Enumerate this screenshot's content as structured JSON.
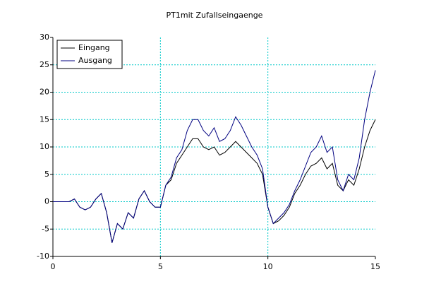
{
  "chart_data": {
    "type": "line",
    "title": "PT1mit Zufallseingaenge",
    "x": [
      0,
      0.25,
      0.5,
      0.75,
      1,
      1.25,
      1.5,
      1.75,
      2,
      2.25,
      2.5,
      2.75,
      3,
      3.25,
      3.5,
      3.75,
      4,
      4.25,
      4.5,
      4.75,
      5,
      5.25,
      5.5,
      5.75,
      6,
      6.25,
      6.5,
      6.75,
      7,
      7.25,
      7.5,
      7.75,
      8,
      8.25,
      8.5,
      8.75,
      9,
      9.25,
      9.5,
      9.75,
      10,
      10.25,
      10.5,
      10.75,
      11,
      11.25,
      11.5,
      11.75,
      12,
      12.25,
      12.5,
      12.75,
      13,
      13.25,
      13.5,
      13.75,
      14,
      14.25,
      14.5,
      14.75,
      15
    ],
    "series": [
      {
        "name": "Eingang",
        "color": "#000000",
        "values": [
          0,
          0,
          0,
          0,
          0.5,
          -1,
          -1.5,
          -1,
          0.5,
          1.5,
          -2,
          -7.5,
          -4,
          -5,
          -2,
          -3,
          0.5,
          2,
          0,
          -1,
          -1,
          3,
          4,
          7,
          8.5,
          10,
          11.5,
          11.5,
          10,
          9.5,
          10,
          8.5,
          9,
          10,
          11,
          10,
          9,
          8,
          7,
          5,
          -1,
          -4,
          -3.5,
          -2.5,
          -1,
          1.5,
          3,
          5,
          6.5,
          7,
          8,
          6,
          7,
          3,
          2,
          4,
          3,
          6,
          10,
          13,
          15
        ]
      },
      {
        "name": "Ausgang",
        "color": "#000080",
        "values": [
          0,
          0,
          0,
          0,
          0.5,
          -1,
          -1.5,
          -1,
          0.5,
          1.5,
          -2,
          -7.5,
          -4,
          -5,
          -2,
          -3,
          0.5,
          2,
          0,
          -1,
          -1,
          3,
          4.5,
          8,
          9.5,
          13,
          15,
          15,
          13,
          12,
          13.5,
          11,
          11.5,
          13,
          15.5,
          14,
          12,
          10,
          8.5,
          6,
          -1,
          -4,
          -3,
          -2,
          -0.5,
          2,
          4,
          6.5,
          9,
          10,
          12,
          9,
          10,
          4,
          2,
          5,
          4,
          8,
          15,
          20,
          24
        ]
      }
    ],
    "xlim": [
      0,
      15
    ],
    "xticks": [
      0,
      5,
      10,
      15
    ],
    "ylim": [
      -10,
      30
    ],
    "yticks": [
      -10,
      -5,
      0,
      5,
      10,
      15,
      20,
      25,
      30
    ],
    "grid": true,
    "legend": "upper left"
  }
}
